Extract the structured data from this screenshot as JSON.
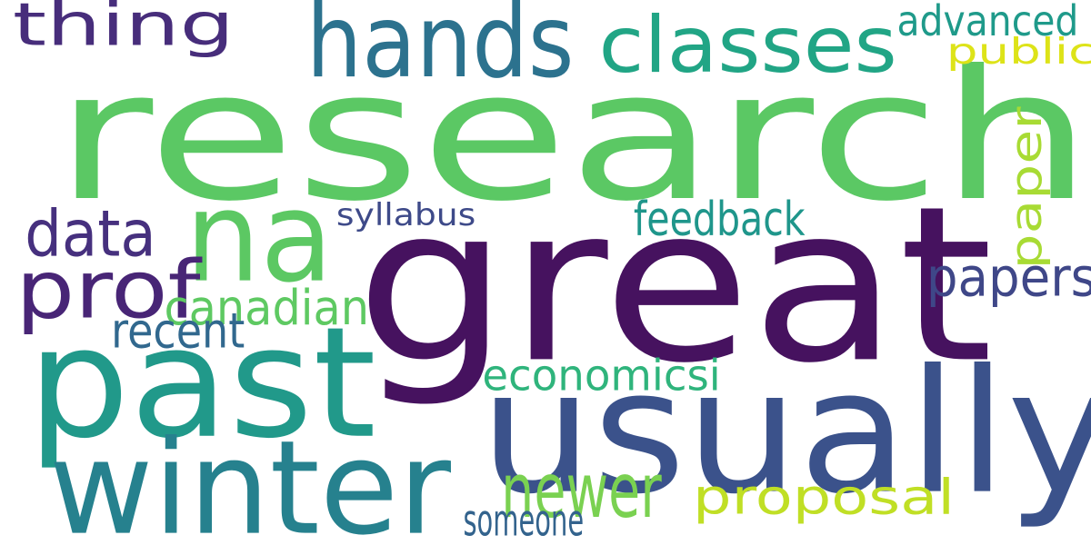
{
  "words": [
    {
      "id": "research",
      "text": "research",
      "color": "#5bc864"
    },
    {
      "id": "great",
      "text": "great",
      "color": "#46125f"
    },
    {
      "id": "usually",
      "text": "usually",
      "color": "#3b528b"
    },
    {
      "id": "past",
      "text": "past",
      "color": "#21998a"
    },
    {
      "id": "winter",
      "text": "winter",
      "color": "#26818e"
    },
    {
      "id": "hands",
      "text": "hands",
      "color": "#2c728e"
    },
    {
      "id": "na",
      "text": "na",
      "color": "#5cc863"
    },
    {
      "id": "thing",
      "text": "thing",
      "color": "#472d7b"
    },
    {
      "id": "classes",
      "text": "classes",
      "color": "#21a585"
    },
    {
      "id": "prof",
      "text": "prof",
      "color": "#482576"
    },
    {
      "id": "data",
      "text": "data",
      "color": "#46307e"
    },
    {
      "id": "paper",
      "text": "paper",
      "color": "#a8db34"
    },
    {
      "id": "papers",
      "text": "papers",
      "color": "#3f4788"
    },
    {
      "id": "canadian",
      "text": "canadian",
      "color": "#5ec962"
    },
    {
      "id": "proposal",
      "text": "proposal",
      "color": "#c0df25"
    },
    {
      "id": "newer",
      "text": "newer",
      "color": "#7ad151"
    },
    {
      "id": "economicsi",
      "text": "economicsi",
      "color": "#2fb47c"
    },
    {
      "id": "feedback",
      "text": "feedback",
      "color": "#1f968b"
    },
    {
      "id": "advanced",
      "text": "advanced",
      "color": "#1f9a8a"
    },
    {
      "id": "public",
      "text": "public",
      "color": "#dde318"
    },
    {
      "id": "recent",
      "text": "recent",
      "color": "#31688e"
    },
    {
      "id": "syllabus",
      "text": "syllabus",
      "color": "#3e4a89"
    },
    {
      "id": "someone",
      "text": "someone",
      "color": "#33638d"
    }
  ]
}
